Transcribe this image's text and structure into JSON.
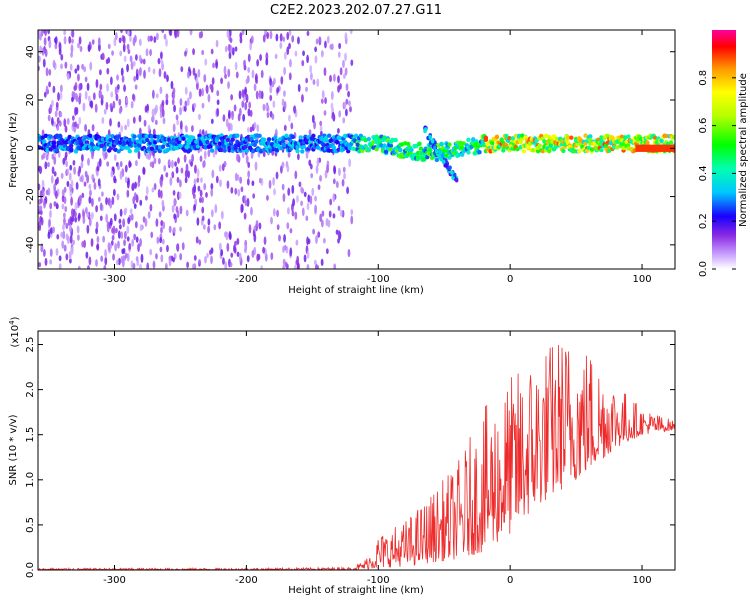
{
  "title": "C2E2.2023.202.07.27.G11",
  "chart_data": [
    {
      "type": "heatmap",
      "xlabel": "Height of straight line (km)",
      "ylabel": "Frequency (Hz)",
      "xlim": [
        -358,
        125
      ],
      "ylim": [
        -50,
        49
      ],
      "xticks": [
        -300,
        -200,
        -100,
        0,
        100
      ],
      "yticks": [
        -40,
        -20,
        0,
        20,
        40
      ],
      "colorbar": {
        "label": "Normalized spectral amplitude",
        "ticks": [
          0.0,
          0.2,
          0.4,
          0.6,
          0.8
        ],
        "range": [
          0,
          1
        ]
      },
      "features": {
        "noise_region_km": [
          -358,
          -120
        ],
        "main_band_center_hz": 2,
        "main_band_halfwidth_hz": 3,
        "feature_dip_km": -45,
        "feature_dip_hz": -12,
        "high_amplitude_region_km": [
          -20,
          125
        ]
      }
    },
    {
      "type": "line",
      "xlabel": "Height of straight line (km)",
      "ylabel": "SNR (10 * v/v)",
      "yscale_label": "(x10",
      "yscale_exp": "4",
      "yscale_close": ")",
      "xlim": [
        -358,
        125
      ],
      "ylim": [
        0,
        2.65
      ],
      "xticks": [
        -300,
        -200,
        -100,
        0,
        100
      ],
      "yticks": [
        0.0,
        0.5,
        1.0,
        1.5,
        2.0,
        2.5
      ],
      "color": "#ee2a2a",
      "envelope": {
        "x": [
          -358,
          -300,
          -200,
          -120,
          -110,
          -100,
          -80,
          -60,
          -40,
          -20,
          0,
          20,
          40,
          60,
          80,
          100,
          125
        ],
        "max": [
          0.02,
          0.02,
          0.02,
          0.03,
          0.12,
          0.4,
          0.55,
          0.85,
          1.2,
          1.8,
          2.15,
          2.45,
          2.65,
          2.5,
          2.1,
          1.8,
          1.65
        ],
        "base": [
          0.0,
          0.0,
          0.0,
          0.0,
          0.01,
          0.02,
          0.04,
          0.08,
          0.12,
          0.2,
          0.4,
          0.7,
          0.9,
          1.1,
          1.35,
          1.5,
          1.55
        ]
      }
    }
  ]
}
